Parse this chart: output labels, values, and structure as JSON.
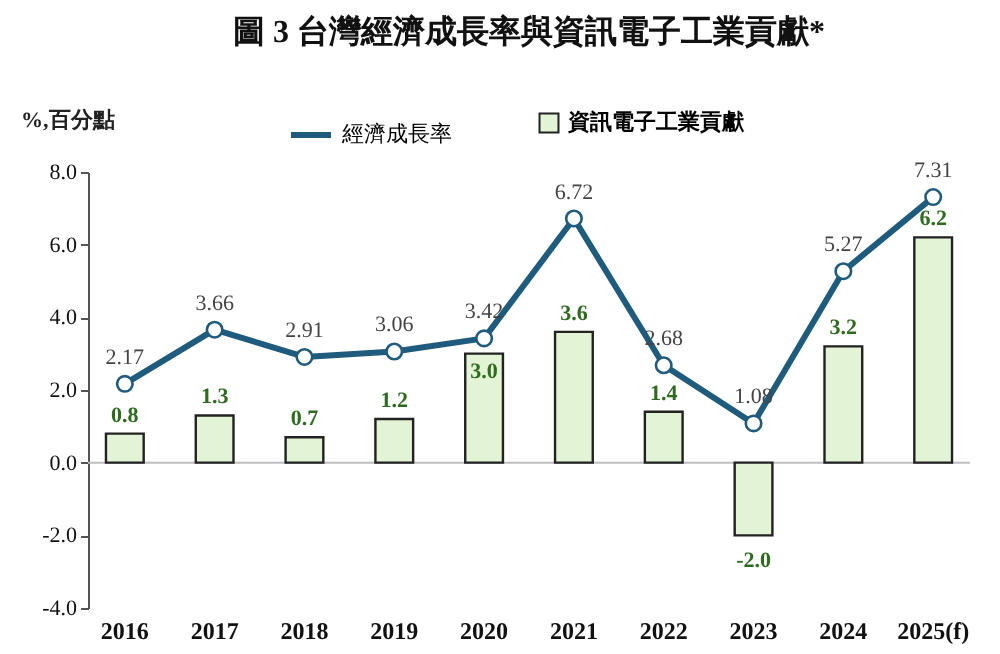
{
  "chart_data": {
    "type": "bar",
    "title": "圖 3  台灣經濟成長率與資訊電子工業貢獻*",
    "ylabel": "%,百分點",
    "categories": [
      "2016",
      "2017",
      "2018",
      "2019",
      "2020",
      "2021",
      "2022",
      "2023",
      "2024",
      "2025(f)"
    ],
    "series": [
      {
        "name": "經濟成長率",
        "type": "line",
        "color": "#1f5b7c",
        "values": [
          2.17,
          3.66,
          2.91,
          3.06,
          3.42,
          6.72,
          2.68,
          1.08,
          5.27,
          7.31
        ],
        "value_labels": [
          "2.17",
          "3.66",
          "2.91",
          "3.06",
          "3.42",
          "6.72",
          "2.68",
          "1.08",
          "5.27",
          "7.31"
        ]
      },
      {
        "name": "資訊電子工業貢獻",
        "color": "#e2f3d6",
        "values": [
          0.8,
          1.3,
          0.7,
          1.2,
          3.0,
          3.6,
          1.4,
          -2.0,
          3.2,
          6.2
        ],
        "value_labels": [
          "0.8",
          "1.3",
          "0.7",
          "1.2",
          "3.0",
          "3.6",
          "1.4",
          "-2.0",
          "3.2",
          "6.2"
        ]
      }
    ],
    "ylim": [
      -4,
      8
    ],
    "yticks": [
      {
        "value": -4,
        "label": "-4.0"
      },
      {
        "value": -2,
        "label": "-2.0"
      },
      {
        "value": 0,
        "label": "0.0"
      },
      {
        "value": 2,
        "label": "2.0"
      },
      {
        "value": 4,
        "label": "4.0"
      },
      {
        "value": 6,
        "label": "6.0"
      },
      {
        "value": 8,
        "label": "8.0"
      }
    ],
    "ref_lines": [
      {
        "axis": "y",
        "value": 0,
        "color": "#bfbfbf"
      }
    ],
    "grid": false,
    "legend": "top",
    "marker": "circle"
  }
}
